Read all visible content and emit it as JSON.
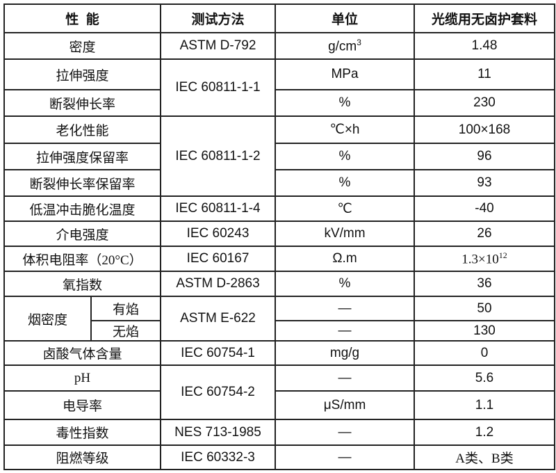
{
  "header": {
    "property": "性  能",
    "method": "测试方法",
    "unit": "单位",
    "value": "光缆用无卤护套料"
  },
  "rows": {
    "density": {
      "property": "密度",
      "method": "ASTM D-792",
      "unit": "g/cm",
      "unit_sup": "3",
      "value": "1.48"
    },
    "tensile": {
      "property": "拉伸强度",
      "method": "IEC 60811-1-1",
      "unit": "MPa",
      "value": "11"
    },
    "elongation": {
      "property": "断裂伸长率",
      "unit": "%",
      "value": "230"
    },
    "aging": {
      "property": "老化性能",
      "method": "IEC 60811-1-2",
      "unit": "℃×h",
      "value": "100×168"
    },
    "tensile_retention": {
      "property": "拉伸强度保留率",
      "unit": "%",
      "value": "96"
    },
    "elongation_retention": {
      "property": "断裂伸长率保留率",
      "unit": "%",
      "value": "93"
    },
    "low_temp": {
      "property": "低温冲击脆化温度",
      "method": "IEC 60811-1-4",
      "unit": "℃",
      "value": "-40"
    },
    "dielectric": {
      "property": "介电强度",
      "method": "IEC 60243",
      "unit": "kV/mm",
      "value": "26"
    },
    "resistivity": {
      "property": "体积电阻率（20°C）",
      "method": "IEC 60167",
      "unit": "Ω.m",
      "value": "1.3×10",
      "value_sup": "12"
    },
    "oxygen": {
      "property": "氧指数",
      "method": "ASTM D-2863",
      "unit": "%",
      "value": "36"
    },
    "smoke": {
      "property": "烟密度",
      "method": "ASTM E-622",
      "flaming": {
        "label": "有焰",
        "unit": "—",
        "value": "50"
      },
      "nonflaming": {
        "label": "无焰",
        "unit": "—",
        "value": "130"
      }
    },
    "halogen_acid": {
      "property": "卤酸气体含量",
      "method": "IEC 60754-1",
      "unit": "mg/g",
      "value": "0"
    },
    "ph": {
      "property": "pH",
      "method": "IEC 60754-2",
      "unit": "—",
      "value": "5.6"
    },
    "conductivity": {
      "property": "电导率",
      "unit": "μS/mm",
      "value": "1.1"
    },
    "toxicity": {
      "property": "毒性指数",
      "method": "NES 713-1985",
      "unit": "—",
      "value": "1.2"
    },
    "flame_rating": {
      "property": "阻燃等级",
      "method": "IEC 60332-3",
      "unit": "—",
      "value": "A类、B类"
    }
  }
}
